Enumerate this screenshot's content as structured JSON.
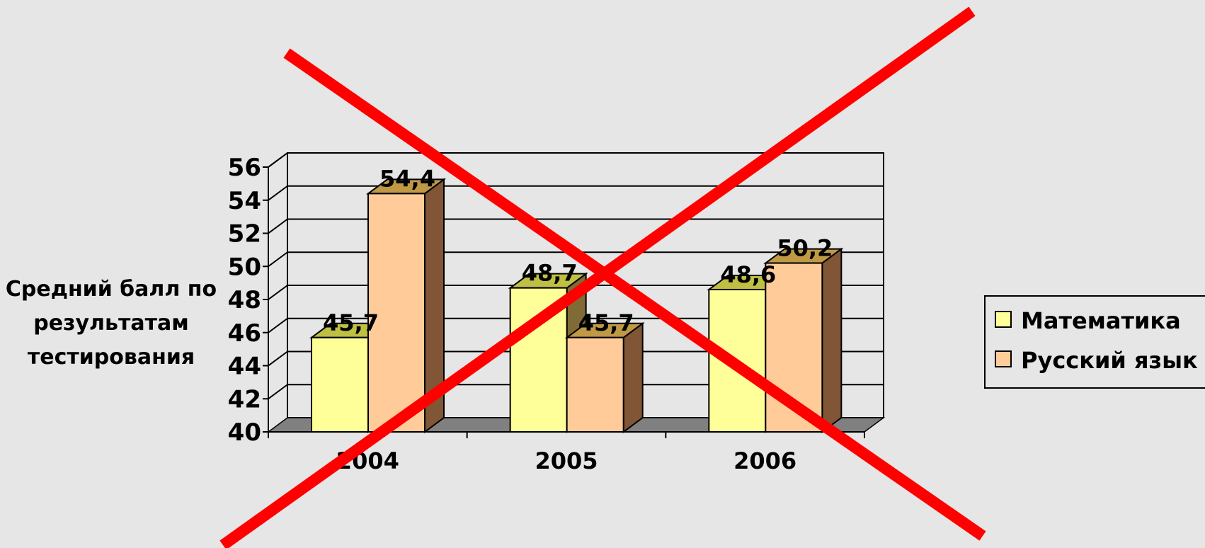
{
  "chart_data": {
    "type": "bar",
    "style": "3d-clustered-column",
    "categories": [
      "2004",
      "2005",
      "2006"
    ],
    "series": [
      {
        "name": "Математика",
        "values": [
          45.7,
          48.7,
          48.6
        ],
        "color": "#ffff99",
        "labels": [
          "45,7",
          "48,7",
          "48,6"
        ]
      },
      {
        "name": "Русский язык",
        "values": [
          54.4,
          45.7,
          50.2
        ],
        "color": "#ffcc99",
        "labels": [
          "54,4",
          "45,7",
          "50,2"
        ]
      }
    ],
    "ylabel_lines": [
      "Средний балл по",
      "результатам",
      "тестирования"
    ],
    "ylim": [
      40,
      56
    ],
    "yticks": [
      "40",
      "42",
      "44",
      "46",
      "48",
      "50",
      "52",
      "54",
      "56"
    ],
    "grid": true,
    "legend": "right",
    "overlay": "red-x",
    "overlay_color": "#ff0000"
  }
}
